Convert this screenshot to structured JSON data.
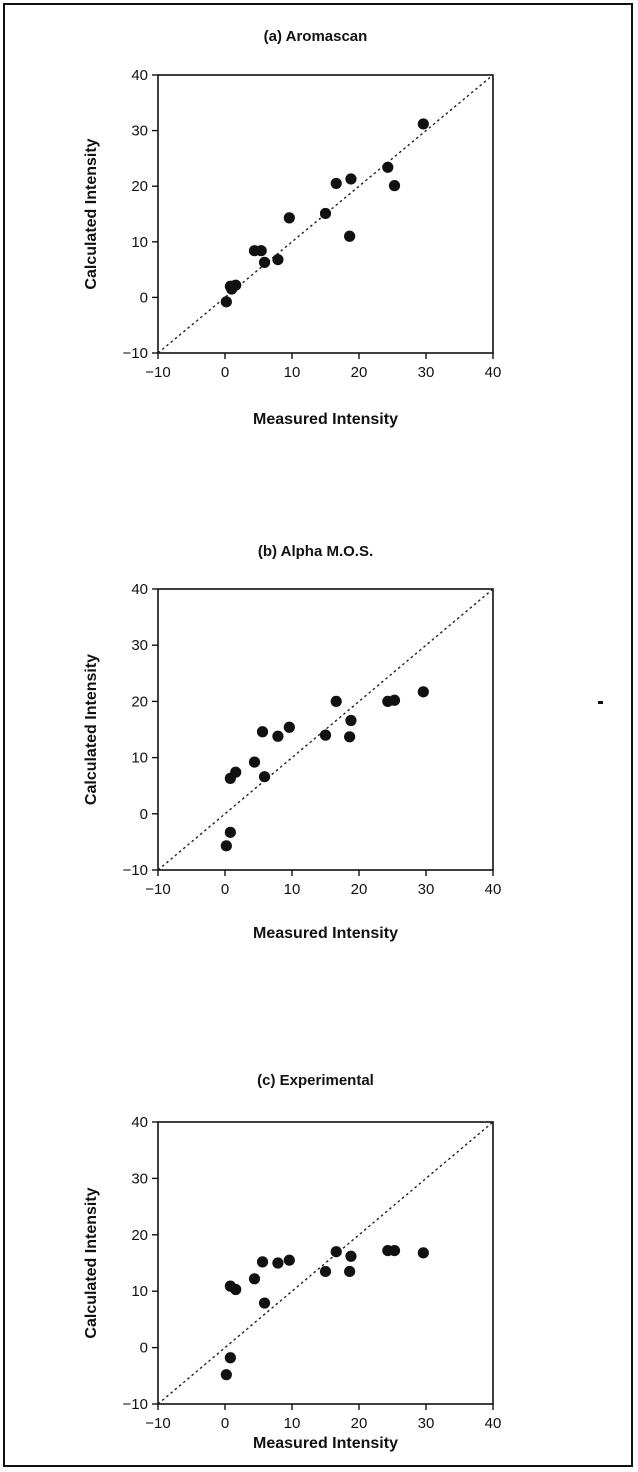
{
  "chart_data": [
    {
      "type": "scatter",
      "title": "(a) Aromascan",
      "xlabel": "Measured Intensity",
      "ylabel": "Calculated Intensity",
      "xlim": [
        -10,
        40
      ],
      "ylim": [
        -10,
        40
      ],
      "xticks": [
        -10,
        0,
        10,
        20,
        30,
        40
      ],
      "yticks": [
        -10,
        0,
        10,
        20,
        30,
        40
      ],
      "reference_line": "y = x (dotted)",
      "grid": false,
      "points": [
        {
          "x": 0.2,
          "y": -0.8
        },
        {
          "x": 0.8,
          "y": 2.0
        },
        {
          "x": 1.0,
          "y": 1.5
        },
        {
          "x": 1.6,
          "y": 2.2
        },
        {
          "x": 4.4,
          "y": 8.4
        },
        {
          "x": 5.4,
          "y": 8.4
        },
        {
          "x": 5.9,
          "y": 6.3
        },
        {
          "x": 7.9,
          "y": 6.8
        },
        {
          "x": 9.6,
          "y": 14.3
        },
        {
          "x": 15.0,
          "y": 15.1
        },
        {
          "x": 16.6,
          "y": 20.5
        },
        {
          "x": 18.8,
          "y": 21.3
        },
        {
          "x": 18.6,
          "y": 11.0
        },
        {
          "x": 24.3,
          "y": 23.4
        },
        {
          "x": 25.3,
          "y": 20.1
        },
        {
          "x": 29.6,
          "y": 31.2
        }
      ]
    },
    {
      "type": "scatter",
      "title": "(b) Alpha M.O.S.",
      "xlabel": "Measured Intensity",
      "ylabel": "Calculated Intensity",
      "xlim": [
        -10,
        40
      ],
      "ylim": [
        -10,
        40
      ],
      "xticks": [
        -10,
        0,
        10,
        20,
        30,
        40
      ],
      "yticks": [
        -10,
        0,
        10,
        20,
        30,
        40
      ],
      "reference_line": "y = x (dotted)",
      "grid": false,
      "points": [
        {
          "x": 0.2,
          "y": -5.7
        },
        {
          "x": 0.8,
          "y": -3.3
        },
        {
          "x": 0.8,
          "y": 6.3
        },
        {
          "x": 1.6,
          "y": 7.4
        },
        {
          "x": 4.4,
          "y": 9.2
        },
        {
          "x": 5.6,
          "y": 14.6
        },
        {
          "x": 5.9,
          "y": 6.6
        },
        {
          "x": 7.9,
          "y": 13.8
        },
        {
          "x": 9.6,
          "y": 15.4
        },
        {
          "x": 15.0,
          "y": 14.0
        },
        {
          "x": 16.6,
          "y": 20.0
        },
        {
          "x": 18.8,
          "y": 16.6
        },
        {
          "x": 18.6,
          "y": 13.7
        },
        {
          "x": 24.3,
          "y": 20.0
        },
        {
          "x": 25.3,
          "y": 20.2
        },
        {
          "x": 29.6,
          "y": 21.7
        }
      ]
    },
    {
      "type": "scatter",
      "title": "(c) Experimental",
      "xlabel": "Measured Intensity",
      "ylabel": "Calculated Intensity",
      "xlim": [
        -10,
        40
      ],
      "ylim": [
        -10,
        40
      ],
      "xticks": [
        -10,
        0,
        10,
        20,
        30,
        40
      ],
      "yticks": [
        -10,
        0,
        10,
        20,
        30,
        40
      ],
      "reference_line": "y = x (dotted)",
      "grid": false,
      "points": [
        {
          "x": 0.2,
          "y": -4.8
        },
        {
          "x": 0.8,
          "y": -1.8
        },
        {
          "x": 0.8,
          "y": 10.9
        },
        {
          "x": 1.6,
          "y": 10.3
        },
        {
          "x": 4.4,
          "y": 12.2
        },
        {
          "x": 5.6,
          "y": 15.2
        },
        {
          "x": 5.9,
          "y": 7.9
        },
        {
          "x": 7.9,
          "y": 15.0
        },
        {
          "x": 9.6,
          "y": 15.5
        },
        {
          "x": 15.0,
          "y": 13.5
        },
        {
          "x": 16.6,
          "y": 17.0
        },
        {
          "x": 18.8,
          "y": 16.2
        },
        {
          "x": 18.6,
          "y": 13.5
        },
        {
          "x": 24.3,
          "y": 17.2
        },
        {
          "x": 25.3,
          "y": 17.2
        },
        {
          "x": 29.6,
          "y": 16.8
        }
      ]
    }
  ]
}
